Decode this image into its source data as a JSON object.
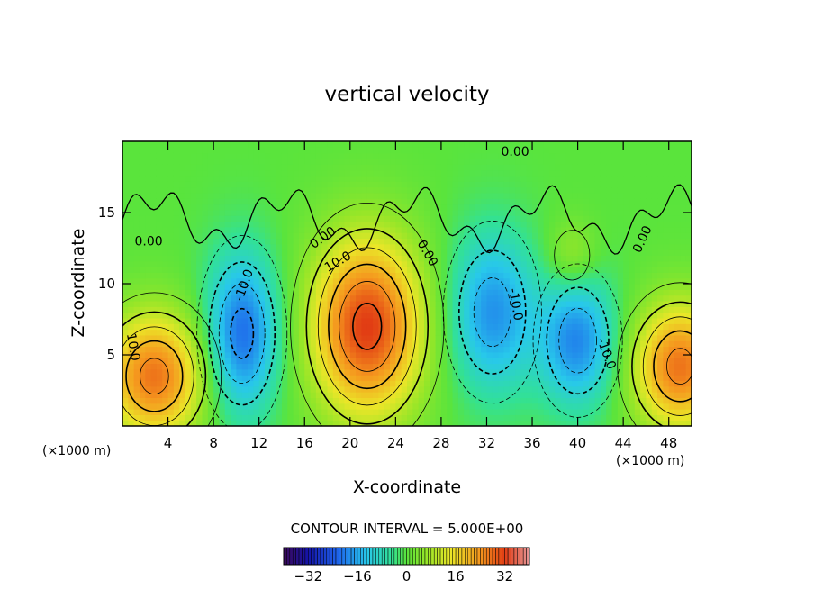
{
  "chart_data": {
    "type": "heatmap",
    "title": "vertical velocity",
    "xlabel": "X-coordinate",
    "ylabel": "Z-coordinate",
    "x_unit": "(×1000 m)",
    "x_unit_right": "(×1000 m)",
    "xlim": [
      0,
      50
    ],
    "ylim": [
      0,
      20
    ],
    "x_ticks": [
      4,
      8,
      12,
      16,
      20,
      24,
      28,
      32,
      36,
      40,
      44,
      48
    ],
    "y_ticks": [
      5,
      10,
      15
    ],
    "contour_interval_text": "CONTOUR INTERVAL = 5.000E+00",
    "colorbar": {
      "ticks": [
        -32,
        -16,
        0,
        16,
        32
      ],
      "range": [
        -40,
        40
      ]
    },
    "cells": [
      {
        "x": 2.8,
        "z": 3.5,
        "peak": 27,
        "sx": 3.2,
        "sz": 3.2
      },
      {
        "x": 10.5,
        "z": 6.5,
        "peak": -22,
        "sx": 2.3,
        "sz": 4.0
      },
      {
        "x": 21.5,
        "z": 7.0,
        "peak": 32,
        "sx": 3.5,
        "sz": 4.5
      },
      {
        "x": 32.5,
        "z": 8.0,
        "peak": -18,
        "sx": 2.7,
        "sz": 4.0
      },
      {
        "x": 40.0,
        "z": 6.0,
        "peak": -19,
        "sx": 2.4,
        "sz": 3.3
      },
      {
        "x": 39.5,
        "z": 12.0,
        "peak": 8,
        "sx": 1.6,
        "sz": 1.8
      },
      {
        "x": 49.0,
        "z": 4.2,
        "peak": 27,
        "sx": 3.0,
        "sz": 3.2
      }
    ],
    "contour_labels": [
      {
        "text": "0.00",
        "x": 2.3,
        "z": 12.7,
        "angle": 0
      },
      {
        "text": "10.0",
        "x": 0.6,
        "z": 5.5,
        "angle": 80
      },
      {
        "text": "-10.0",
        "x": 11.0,
        "z": 9.8,
        "angle": -70
      },
      {
        "text": "0.00",
        "x": 17.8,
        "z": 13.0,
        "angle": -35
      },
      {
        "text": "10.0",
        "x": 19.1,
        "z": 11.3,
        "angle": -30
      },
      {
        "text": "0.00",
        "x": 26.5,
        "z": 12.0,
        "angle": 60
      },
      {
        "text": "0.00",
        "x": 34.5,
        "z": 19.0,
        "angle": 0
      },
      {
        "text": "-10.0",
        "x": 34.2,
        "z": 8.5,
        "angle": 80
      },
      {
        "text": "-10.0",
        "x": 42.2,
        "z": 5.0,
        "angle": 70
      },
      {
        "text": "0.00",
        "x": 46.0,
        "z": 13.0,
        "angle": -65
      }
    ]
  }
}
